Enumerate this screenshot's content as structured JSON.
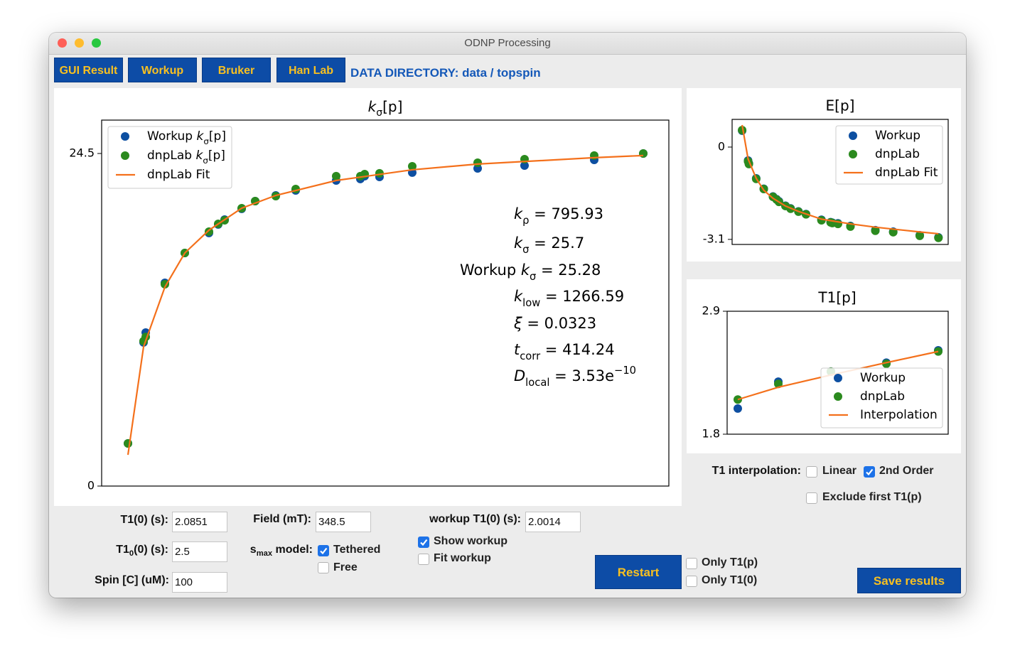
{
  "window": {
    "title": "ODNP Processing"
  },
  "toolbar": {
    "buttons": [
      "GUI Result",
      "Workup",
      "Bruker",
      "Han Lab"
    ],
    "data_directory": "DATA DIRECTORY: data / topspin"
  },
  "chart_data": [
    {
      "type": "scatter",
      "title": {
        "symbol": "k",
        "sub": "σ",
        "text": "[p]"
      },
      "xlim": [
        0,
        100
      ],
      "ylim": [
        0,
        26.96
      ],
      "yticks": [
        0,
        24.5
      ],
      "legend": "upper left",
      "series": [
        {
          "name": {
            "prefix": "Workup ",
            "symbol": "k",
            "sub": "σ",
            "text": "[p]"
          },
          "color": "#0d4fa1",
          "style": "marker",
          "x": [
            4.64,
            7.39,
            7.77,
            11.15,
            14.66,
            18.92,
            20.55,
            21.68,
            24.69,
            27.07,
            30.7,
            34.21,
            41.35,
            45.61,
            46.37,
            48.99,
            54.76,
            66.29,
            74.56,
            86.84,
            95.49
          ],
          "values": [
            3.14,
            10.58,
            11.31,
            14.97,
            17.17,
            18.64,
            19.27,
            19.63,
            20.42,
            20.99,
            21.41,
            21.78,
            22.51,
            22.62,
            22.83,
            22.77,
            23.09,
            23.4,
            23.61,
            24.03,
            24.5
          ]
        },
        {
          "name": {
            "prefix": "dnpLab ",
            "symbol": "k",
            "sub": "σ",
            "text": "[p]"
          },
          "color": "#2b8a1e",
          "style": "marker",
          "x": [
            4.64,
            7.39,
            7.77,
            11.15,
            14.66,
            18.92,
            20.55,
            21.68,
            24.69,
            27.07,
            30.7,
            34.21,
            41.35,
            45.61,
            46.37,
            48.99,
            54.76,
            66.29,
            74.56,
            86.84,
            95.49
          ],
          "values": [
            3.14,
            10.68,
            10.99,
            14.87,
            17.17,
            18.74,
            19.32,
            19.58,
            20.47,
            20.99,
            21.36,
            21.88,
            22.83,
            22.83,
            22.98,
            23.04,
            23.56,
            23.82,
            24.08,
            24.35,
            24.5
          ]
        },
        {
          "name": "dnpLab Fit",
          "color": "#f4701b",
          "style": "line",
          "x": [
            4.64,
            7.39,
            11.15,
            14.66,
            18.92,
            24.69,
            30.7,
            41.35,
            54.76,
            66.29,
            86.84,
            95.49
          ],
          "values": [
            2.3,
            10.26,
            14.66,
            17.17,
            18.85,
            20.47,
            21.41,
            22.51,
            23.3,
            23.72,
            24.19,
            24.35
          ]
        }
      ],
      "annotations": [
        {
          "symbol": "k",
          "sub": "ρ",
          "text": " = 795.93"
        },
        {
          "symbol": "k",
          "sub": "σ",
          "text": " = 25.7"
        },
        {
          "prefix": "Workup ",
          "symbol": "k",
          "sub": "σ",
          "text": " = 25.28"
        },
        {
          "symbol": "k",
          "sub": "low",
          "text": " = 1266.59"
        },
        {
          "symbol": "ξ",
          "text": " = 0.0323"
        },
        {
          "symbol": "t",
          "sub": "corr",
          "text": " = 414.24"
        },
        {
          "symbol": "D",
          "sub": "local",
          "text": " = 3.53e",
          "sup": "−10"
        }
      ]
    },
    {
      "type": "scatter",
      "title": "E[p]",
      "xlim": [
        0,
        100
      ],
      "ylim": [
        -3.27,
        0.93
      ],
      "yticks": [
        0,
        -3.1
      ],
      "legend": "upper right",
      "series": [
        {
          "name": "Workup",
          "color": "#0d4fa1",
          "style": "marker",
          "x": [
            4.64,
            7.39,
            7.77,
            11.15,
            14.66,
            18.92,
            20.55,
            21.68,
            24.69,
            27.07,
            30.7,
            34.21,
            41.35,
            45.61,
            46.37,
            48.99,
            54.76,
            66.29,
            74.56,
            86.84,
            95.49
          ],
          "values": [
            0.55,
            -0.45,
            -0.55,
            -1.05,
            -1.4,
            -1.66,
            -1.75,
            -1.82,
            -1.97,
            -2.06,
            -2.16,
            -2.25,
            -2.44,
            -2.52,
            -2.54,
            -2.56,
            -2.65,
            -2.79,
            -2.84,
            -2.96,
            -3.03
          ]
        },
        {
          "name": "dnpLab",
          "color": "#2b8a1e",
          "style": "marker",
          "x": [
            4.64,
            7.39,
            7.77,
            11.15,
            14.66,
            18.92,
            20.55,
            21.68,
            24.69,
            27.07,
            30.7,
            34.21,
            41.35,
            45.61,
            46.37,
            48.99,
            54.76,
            66.29,
            74.56,
            86.84,
            95.49
          ],
          "values": [
            0.57,
            -0.48,
            -0.57,
            -1.07,
            -1.41,
            -1.67,
            -1.76,
            -1.84,
            -1.98,
            -2.07,
            -2.17,
            -2.26,
            -2.46,
            -2.53,
            -2.55,
            -2.58,
            -2.67,
            -2.81,
            -2.86,
            -2.98,
            -3.05
          ]
        },
        {
          "name": "dnpLab Fit",
          "color": "#f4701b",
          "style": "line",
          "x": [
            4.64,
            7.39,
            11.15,
            14.66,
            18.92,
            24.69,
            30.7,
            41.35,
            54.76,
            66.29,
            86.84,
            95.49
          ],
          "values": [
            0.74,
            -0.4,
            -1.05,
            -1.45,
            -1.72,
            -1.98,
            -2.16,
            -2.42,
            -2.58,
            -2.69,
            -2.85,
            -2.91
          ]
        }
      ]
    },
    {
      "type": "scatter",
      "title": "T1[p]",
      "xlim": [
        0,
        100
      ],
      "ylim": [
        1.8,
        2.9
      ],
      "yticks": [
        2.9,
        1.8
      ],
      "legend": "lower right",
      "series": [
        {
          "name": "Workup",
          "color": "#0d4fa1",
          "style": "marker",
          "x": [
            4.82,
            23.15,
            46.95,
            72.03,
            95.5
          ],
          "values": [
            2.03,
            2.27,
            2.36,
            2.44,
            2.55
          ]
        },
        {
          "name": "dnpLab",
          "color": "#2b8a1e",
          "style": "marker",
          "x": [
            4.82,
            23.15,
            46.95,
            72.03,
            95.5
          ],
          "values": [
            2.11,
            2.25,
            2.36,
            2.43,
            2.54
          ]
        },
        {
          "name": "Interpolation",
          "color": "#f4701b",
          "style": "line",
          "x": [
            4.82,
            23.15,
            46.95,
            72.03,
            95.5
          ],
          "values": [
            2.11,
            2.22,
            2.33,
            2.44,
            2.54
          ]
        }
      ]
    }
  ],
  "form": {
    "fields": [
      {
        "label": "T1(0) (s):",
        "value": 2.0851
      },
      {
        "label": {
          "prefix": "T1",
          "sub": "0",
          "text": "(0) (s):"
        },
        "value": 2.5
      },
      {
        "label": "Spin [C] (uM):",
        "value": 100
      },
      {
        "label": "Field (mT):",
        "value": 348.5
      },
      {
        "label": "workup T1(0) (s):",
        "value": 2.0014
      }
    ],
    "smax_model": {
      "label": {
        "prefix": "s",
        "sub": "max",
        "text": " model:"
      },
      "options": [
        {
          "label": "Tethered",
          "checked": true
        },
        {
          "label": "Free",
          "checked": false
        }
      ]
    },
    "workup_options": [
      {
        "label": "Show workup",
        "checked": true
      },
      {
        "label": "Fit workup",
        "checked": false
      }
    ],
    "restart": "Restart",
    "only_options": [
      {
        "label": "Only T1(p)",
        "checked": false
      },
      {
        "label": "Only T1(0)",
        "checked": false
      }
    ],
    "save": "Save results",
    "t1_interpolation": {
      "label": "T1 interpolation:",
      "options": [
        {
          "label": "Linear",
          "checked": false
        },
        {
          "label": "2nd Order",
          "checked": true
        },
        {
          "label": "Exclude first T1(p)",
          "checked": false
        }
      ]
    }
  }
}
